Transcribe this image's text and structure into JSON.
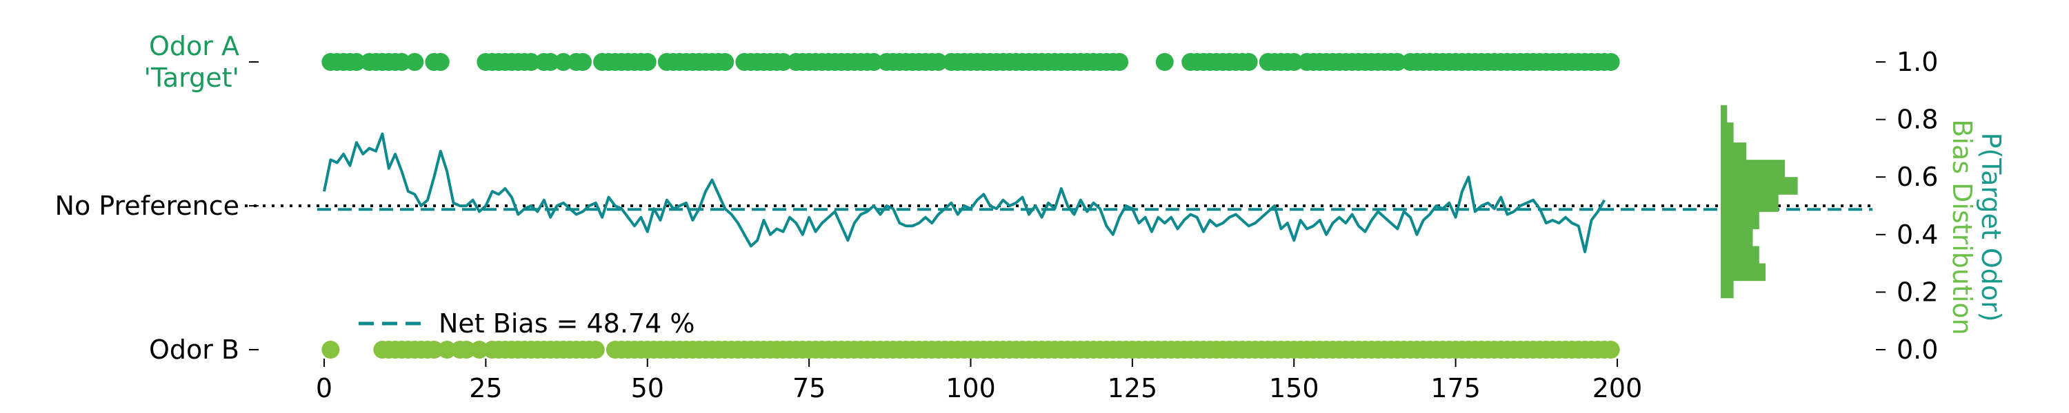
{
  "chart_data": {
    "type": "scatter",
    "title": "",
    "xlabel": "",
    "colors": {
      "odorA": "#2db34a",
      "odorB": "#86c23d",
      "line": "#0d8a8f",
      "hist": "#5fb547",
      "axis": "#000000"
    },
    "x_axis": {
      "range": [
        0,
        200
      ],
      "ticks": [
        "0",
        "25",
        "50",
        "75",
        "100",
        "125",
        "150",
        "175",
        "200"
      ]
    },
    "left_axis": {
      "categories": [
        {
          "label_lines": [
            "Odor A",
            "'Target'"
          ],
          "value": 1.0,
          "color": "#1a9a5c"
        },
        {
          "label_lines": [
            "No Preference"
          ],
          "value": 0.5,
          "color": "#000000"
        },
        {
          "label_lines": [
            "Odor B"
          ],
          "value": 0.0,
          "color": "#000000"
        }
      ]
    },
    "right_axis": {
      "range": [
        0,
        1
      ],
      "ticks": [
        "0.0",
        "0.2",
        "0.4",
        "0.6",
        "0.8",
        "1.0"
      ],
      "label_line1": "P(Target Odor)",
      "label_line1_color": "#1a9a8c",
      "label_line2": "Bias Distribution",
      "label_line2_color": "#6cc04a"
    },
    "legend": {
      "label": "Net Bias = 48.74 %",
      "placement": "lower-left"
    },
    "reference_lines": {
      "no_preference": 0.5,
      "net_bias": 0.4874
    },
    "odor_a_trials": [
      1,
      2,
      3,
      4,
      5,
      7,
      8,
      9,
      10,
      11,
      12,
      14,
      17,
      18,
      25,
      26,
      27,
      28,
      29,
      30,
      31,
      32,
      34,
      35,
      37,
      39,
      40,
      43,
      44,
      45,
      46,
      47,
      48,
      49,
      50,
      53,
      54,
      55,
      56,
      57,
      58,
      59,
      60,
      61,
      62,
      65,
      66,
      67,
      68,
      69,
      70,
      71,
      73,
      74,
      75,
      76,
      77,
      78,
      79,
      80,
      81,
      82,
      83,
      84,
      85,
      87,
      88,
      89,
      90,
      91,
      92,
      93,
      94,
      95,
      97,
      98,
      99,
      100,
      101,
      102,
      103,
      104,
      105,
      106,
      107,
      108,
      109,
      110,
      111,
      112,
      113,
      114,
      115,
      116,
      117,
      118,
      119,
      120,
      121,
      122,
      123,
      130,
      134,
      135,
      136,
      137,
      138,
      139,
      140,
      141,
      142,
      143,
      146,
      147,
      148,
      149,
      150,
      152,
      153,
      154,
      155,
      156,
      157,
      158,
      159,
      160,
      161,
      162,
      163,
      164,
      165,
      166,
      168,
      169,
      170,
      171,
      172,
      173,
      174,
      175,
      176,
      177,
      178,
      179,
      180,
      181,
      182,
      183,
      184,
      185,
      186,
      187,
      188,
      189,
      190,
      191,
      192,
      193,
      194,
      195,
      196,
      197,
      198,
      199
    ],
    "odor_b_trials": [
      1,
      9,
      10,
      11,
      12,
      13,
      14,
      15,
      16,
      17,
      19,
      21,
      22,
      24,
      26,
      27,
      28,
      29,
      30,
      31,
      32,
      33,
      34,
      35,
      36,
      37,
      38,
      39,
      40,
      41,
      42,
      45,
      46,
      47,
      48,
      49,
      50,
      51,
      52,
      53,
      54,
      55,
      56,
      57,
      58,
      59,
      60,
      61,
      62,
      63,
      64,
      65,
      66,
      67,
      68,
      69,
      70,
      71,
      72,
      73,
      74,
      75,
      76,
      77,
      78,
      79,
      80,
      81,
      82,
      83,
      84,
      85,
      86,
      87,
      88,
      89,
      90,
      91,
      92,
      93,
      94,
      95,
      96,
      97,
      98,
      99,
      100,
      101,
      102,
      103,
      104,
      105,
      106,
      107,
      108,
      109,
      110,
      111,
      112,
      113,
      114,
      115,
      116,
      117,
      118,
      119,
      120,
      121,
      122,
      123,
      124,
      125,
      126,
      127,
      128,
      129,
      130,
      131,
      132,
      133,
      134,
      135,
      136,
      137,
      138,
      139,
      140,
      141,
      142,
      143,
      144,
      145,
      146,
      147,
      148,
      149,
      150,
      151,
      152,
      153,
      154,
      155,
      156,
      157,
      158,
      159,
      160,
      161,
      162,
      163,
      164,
      165,
      166,
      167,
      168,
      169,
      170,
      171,
      172,
      173,
      174,
      175,
      176,
      177,
      178,
      179,
      180,
      181,
      182,
      183,
      184,
      185,
      186,
      187,
      188,
      189,
      190,
      191,
      192,
      193,
      194,
      195,
      196,
      197,
      198,
      199
    ],
    "bias_series": {
      "x_start": 0,
      "x_step": 1,
      "values": [
        0.55,
        0.66,
        0.65,
        0.68,
        0.64,
        0.72,
        0.68,
        0.7,
        0.69,
        0.75,
        0.63,
        0.68,
        0.62,
        0.55,
        0.54,
        0.5,
        0.52,
        0.6,
        0.69,
        0.62,
        0.51,
        0.5,
        0.5,
        0.52,
        0.48,
        0.5,
        0.55,
        0.54,
        0.56,
        0.53,
        0.47,
        0.49,
        0.5,
        0.48,
        0.52,
        0.46,
        0.5,
        0.51,
        0.49,
        0.47,
        0.48,
        0.5,
        0.51,
        0.46,
        0.53,
        0.5,
        0.49,
        0.46,
        0.43,
        0.46,
        0.41,
        0.49,
        0.45,
        0.52,
        0.49,
        0.5,
        0.51,
        0.45,
        0.49,
        0.55,
        0.59,
        0.54,
        0.49,
        0.47,
        0.44,
        0.4,
        0.36,
        0.38,
        0.45,
        0.4,
        0.42,
        0.41,
        0.46,
        0.44,
        0.4,
        0.46,
        0.41,
        0.44,
        0.46,
        0.48,
        0.43,
        0.38,
        0.44,
        0.47,
        0.48,
        0.5,
        0.47,
        0.5,
        0.49,
        0.44,
        0.43,
        0.43,
        0.44,
        0.46,
        0.44,
        0.47,
        0.49,
        0.51,
        0.47,
        0.5,
        0.49,
        0.52,
        0.54,
        0.5,
        0.49,
        0.52,
        0.5,
        0.51,
        0.53,
        0.47,
        0.5,
        0.46,
        0.51,
        0.49,
        0.56,
        0.5,
        0.47,
        0.52,
        0.48,
        0.51,
        0.49,
        0.43,
        0.4,
        0.46,
        0.5,
        0.49,
        0.44,
        0.46,
        0.41,
        0.46,
        0.44,
        0.46,
        0.42,
        0.45,
        0.47,
        0.46,
        0.41,
        0.45,
        0.43,
        0.44,
        0.46,
        0.47,
        0.45,
        0.43,
        0.44,
        0.46,
        0.48,
        0.5,
        0.42,
        0.44,
        0.38,
        0.45,
        0.42,
        0.43,
        0.45,
        0.4,
        0.44,
        0.46,
        0.44,
        0.47,
        0.43,
        0.41,
        0.45,
        0.48,
        0.46,
        0.44,
        0.42,
        0.48,
        0.46,
        0.4,
        0.45,
        0.47,
        0.5,
        0.49,
        0.51,
        0.46,
        0.55,
        0.6,
        0.48,
        0.5,
        0.51,
        0.49,
        0.53,
        0.47,
        0.48,
        0.5,
        0.51,
        0.52,
        0.49,
        0.44,
        0.45,
        0.44,
        0.46,
        0.44,
        0.43,
        0.34,
        0.45,
        0.48,
        0.52
      ],
      "color": "#0d8a8f"
    },
    "histogram": {
      "bins": [
        {
          "bin": [
            0.18,
            0.24
          ],
          "count": 2
        },
        {
          "bin": [
            0.24,
            0.3
          ],
          "count": 7
        },
        {
          "bin": [
            0.3,
            0.36
          ],
          "count": 6
        },
        {
          "bin": [
            0.36,
            0.42
          ],
          "count": 5
        },
        {
          "bin": [
            0.42,
            0.48
          ],
          "count": 6
        },
        {
          "bin": [
            0.48,
            0.54
          ],
          "count": 9
        },
        {
          "bin": [
            0.54,
            0.6
          ],
          "count": 12
        },
        {
          "bin": [
            0.6,
            0.66
          ],
          "count": 10
        },
        {
          "bin": [
            0.66,
            0.72
          ],
          "count": 4
        },
        {
          "bin": [
            0.72,
            0.79
          ],
          "count": 2
        },
        {
          "bin": [
            0.79,
            0.85
          ],
          "count": 1
        }
      ],
      "color": "#5fb547"
    }
  }
}
